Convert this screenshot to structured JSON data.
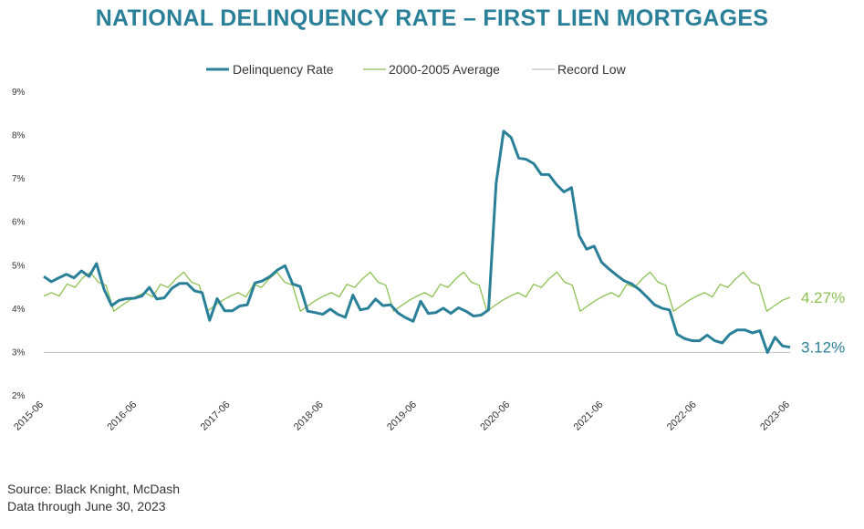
{
  "chart_data": {
    "type": "line",
    "title": "NATIONAL DELINQUENCY RATE – FIRST LIEN MORTGAGES",
    "xlabel": "",
    "ylabel": "",
    "ylim": [
      2,
      9
    ],
    "y_ticks": [
      "2%",
      "3%",
      "4%",
      "5%",
      "6%",
      "7%",
      "8%",
      "9%"
    ],
    "x_ticks": [
      "2015-06",
      "2016-06",
      "2017-06",
      "2018-06",
      "2019-06",
      "2020-06",
      "2021-06",
      "2022-06",
      "2023-06"
    ],
    "x_start": "2015-06",
    "x_end": "2023-06",
    "legend_position": "top",
    "grid": false,
    "series": [
      {
        "name": "Delinquency Rate",
        "color": "#2a8098",
        "end_label": "3.12%",
        "values": [
          4.75,
          4.63,
          4.72,
          4.8,
          4.72,
          4.88,
          4.75,
          5.05,
          4.45,
          4.08,
          4.2,
          4.24,
          4.25,
          4.3,
          4.5,
          4.23,
          4.26,
          4.48,
          4.59,
          4.59,
          4.42,
          4.38,
          3.74,
          4.24,
          3.96,
          3.96,
          4.07,
          4.1,
          4.6,
          4.65,
          4.75,
          4.9,
          5.0,
          4.58,
          4.52,
          3.95,
          3.92,
          3.88,
          4.0,
          3.88,
          3.81,
          4.32,
          3.98,
          4.02,
          4.23,
          4.08,
          4.1,
          3.91,
          3.8,
          3.72,
          4.18,
          3.9,
          3.92,
          4.02,
          3.9,
          4.03,
          3.95,
          3.84,
          3.86,
          3.98,
          6.9,
          8.1,
          7.95,
          7.48,
          7.45,
          7.35,
          7.1,
          7.1,
          6.87,
          6.7,
          6.8,
          5.7,
          5.38,
          5.45,
          5.08,
          4.92,
          4.78,
          4.65,
          4.58,
          4.45,
          4.28,
          4.1,
          4.02,
          3.98,
          3.42,
          3.32,
          3.27,
          3.27,
          3.4,
          3.27,
          3.22,
          3.42,
          3.52,
          3.52,
          3.45,
          3.5,
          3.0,
          3.35,
          3.15,
          3.12
        ]
      },
      {
        "name": "2000-2005 Average",
        "color": "#8cc152",
        "end_label": "4.27%",
        "values": [
          4.3,
          4.38,
          4.3,
          4.58,
          4.5,
          4.72,
          4.85,
          4.62,
          4.55,
          3.95,
          4.08,
          4.2,
          4.3,
          4.38,
          4.28,
          4.57,
          4.5,
          4.7,
          4.85,
          4.62,
          4.55,
          3.95,
          4.08,
          4.2,
          4.3,
          4.38,
          4.28,
          4.57,
          4.5,
          4.7,
          4.85,
          4.62,
          4.55,
          3.95,
          4.08,
          4.2,
          4.3,
          4.38,
          4.28,
          4.57,
          4.5,
          4.7,
          4.85,
          4.62,
          4.55,
          3.95,
          4.08,
          4.2,
          4.3,
          4.38,
          4.28,
          4.57,
          4.5,
          4.7,
          4.85,
          4.62,
          4.55,
          3.95,
          4.08,
          4.2,
          4.3,
          4.38,
          4.28,
          4.57,
          4.5,
          4.7,
          4.85,
          4.62,
          4.55,
          3.95,
          4.08,
          4.2,
          4.3,
          4.38,
          4.28,
          4.57,
          4.5,
          4.7,
          4.85,
          4.62,
          4.55,
          3.95,
          4.08,
          4.2,
          4.3,
          4.38,
          4.28,
          4.57,
          4.5,
          4.7,
          4.85,
          4.62,
          4.55,
          3.95,
          4.08,
          4.2,
          4.27
        ]
      },
      {
        "name": "Record Low",
        "color": "#bfbfbf",
        "values": [
          3.0
        ]
      }
    ]
  },
  "footer": {
    "source": "Source: Black Knight, McDash",
    "data_through": "Data through June 30, 2023"
  }
}
